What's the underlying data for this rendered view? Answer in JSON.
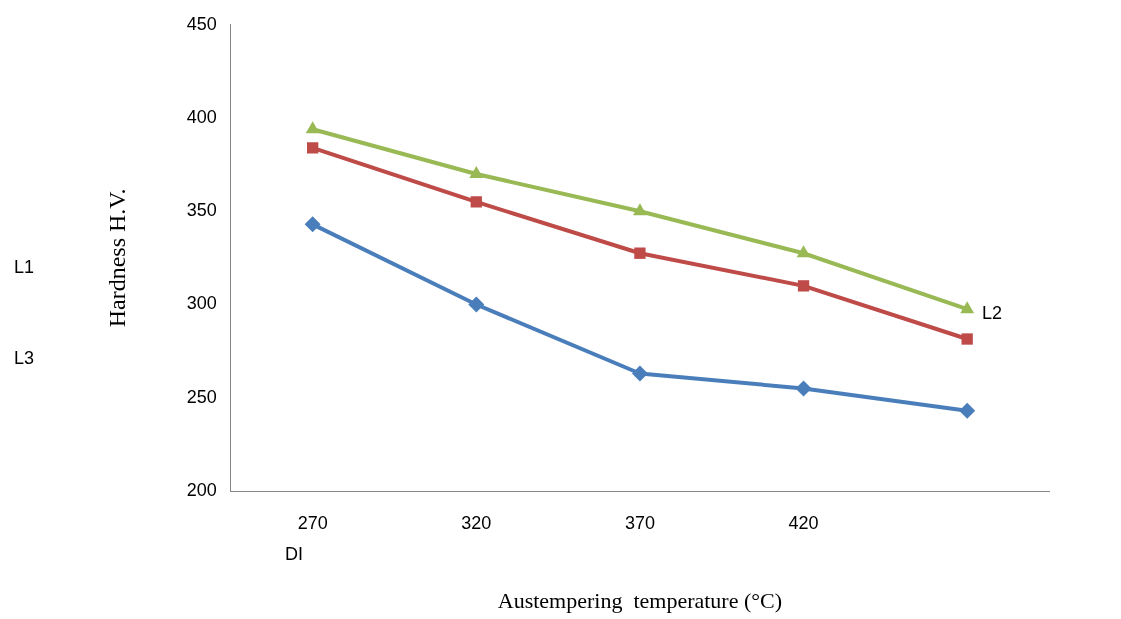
{
  "chart_data": {
    "type": "line",
    "xlabel": "Austempering  temperature (°C)",
    "ylabel": "Hardness H.V.",
    "categories": [
      "270",
      "320",
      "370",
      "420",
      null
    ],
    "ylim": [
      200,
      450
    ],
    "yticks": [
      200,
      250,
      300,
      350,
      400,
      450
    ],
    "grid": false,
    "series": [
      {
        "color": "#4a7ebb",
        "marker": "diamond",
        "values": [
          343,
          300,
          263,
          255,
          243
        ]
      },
      {
        "color": "#be4b48",
        "marker": "square",
        "values": [
          384,
          355,
          327.5,
          310,
          281.5
        ]
      },
      {
        "color": "#98b954",
        "marker": "triangle",
        "values": [
          394,
          370,
          350,
          327.5,
          297.5
        ]
      }
    ],
    "annotations": [
      "L1",
      "L3",
      "L2",
      "DI"
    ]
  }
}
